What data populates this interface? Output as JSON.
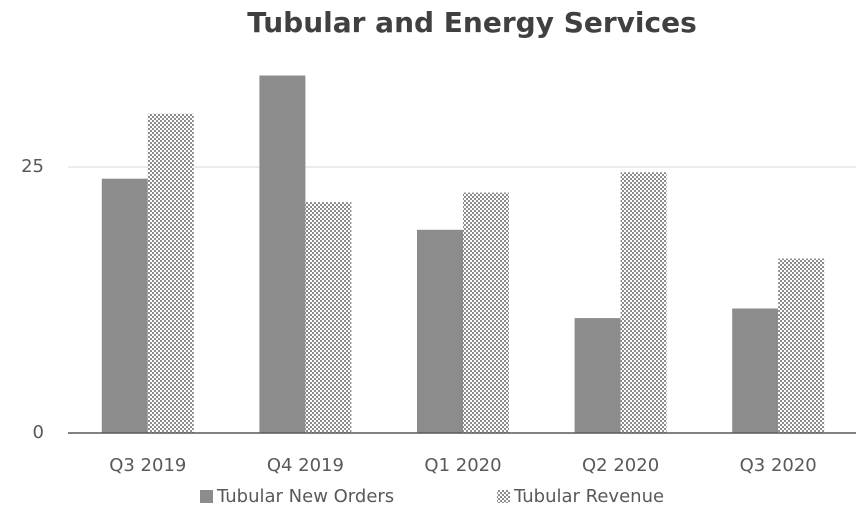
{
  "chart_data": {
    "type": "bar",
    "title": "Tubular and Energy Services",
    "categories": [
      "Q3 2019",
      "Q4 2019",
      "Q1 2020",
      "Q2 2020",
      "Q3 2020"
    ],
    "series": [
      {
        "name": "Tubular New Orders",
        "color": "#8c8c8c",
        "values": [
          23.9,
          33.6,
          19.1,
          10.8,
          11.7
        ]
      },
      {
        "name": "Tubular Revenue",
        "color": "#8c8c8c",
        "pattern": "checker",
        "values": [
          30.0,
          21.7,
          22.6,
          24.5,
          16.4
        ]
      }
    ],
    "ylim": [
      0,
      37.5
    ],
    "yticks": [
      0,
      25
    ],
    "grid": true,
    "legend": "bottom"
  }
}
